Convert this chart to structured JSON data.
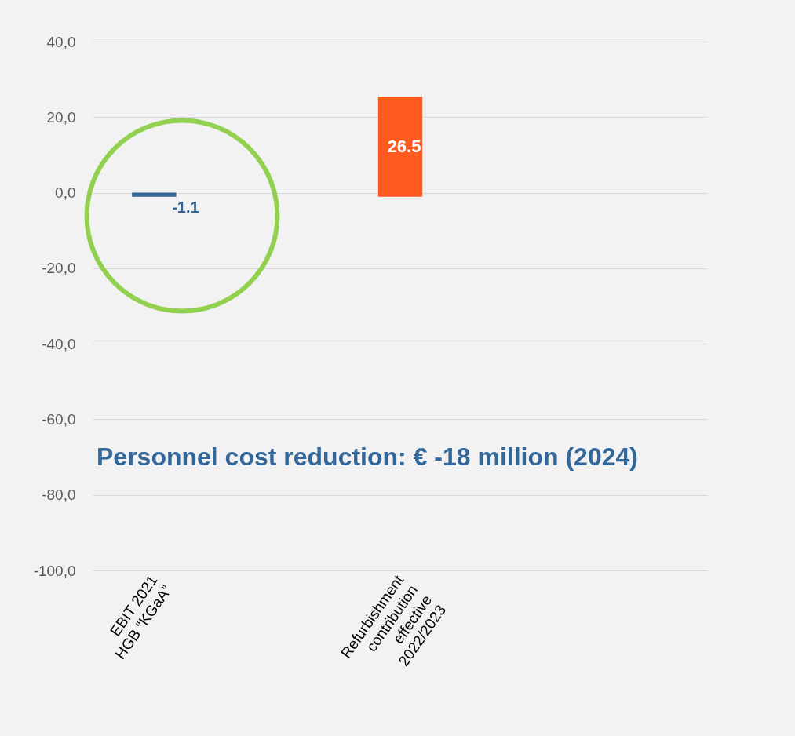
{
  "chart_data": {
    "type": "bar",
    "categories": [
      "EBIT 2021\nHGB “KGaA”",
      null,
      "Refurbishment\ncontribution\neffective\n2022/2023",
      null,
      null
    ],
    "values": [
      -1.1,
      null,
      26.5,
      null,
      null
    ],
    "base": [
      0,
      null,
      -1.1,
      null,
      null
    ],
    "colors": [
      "#336699",
      null,
      "#ff5a1f",
      null,
      null
    ],
    "value_labels": [
      "-1.1",
      null,
      "26.5",
      null,
      null
    ],
    "ylim": [
      -100,
      40
    ],
    "yticks": [
      {
        "value": -100,
        "label": "-100,0"
      },
      {
        "value": -80,
        "label": "-80,0"
      },
      {
        "value": -60,
        "label": "-60,0"
      },
      {
        "value": -40,
        "label": "-40,0"
      },
      {
        "value": -20,
        "label": "-20,0"
      },
      {
        "value": 0,
        "label": "0,0"
      },
      {
        "value": 20,
        "label": "20,0"
      },
      {
        "value": 40,
        "label": "40,0"
      }
    ],
    "grid": "y",
    "annotations": [
      "Personnel cost reduction: € -18 million (2024)"
    ]
  }
}
